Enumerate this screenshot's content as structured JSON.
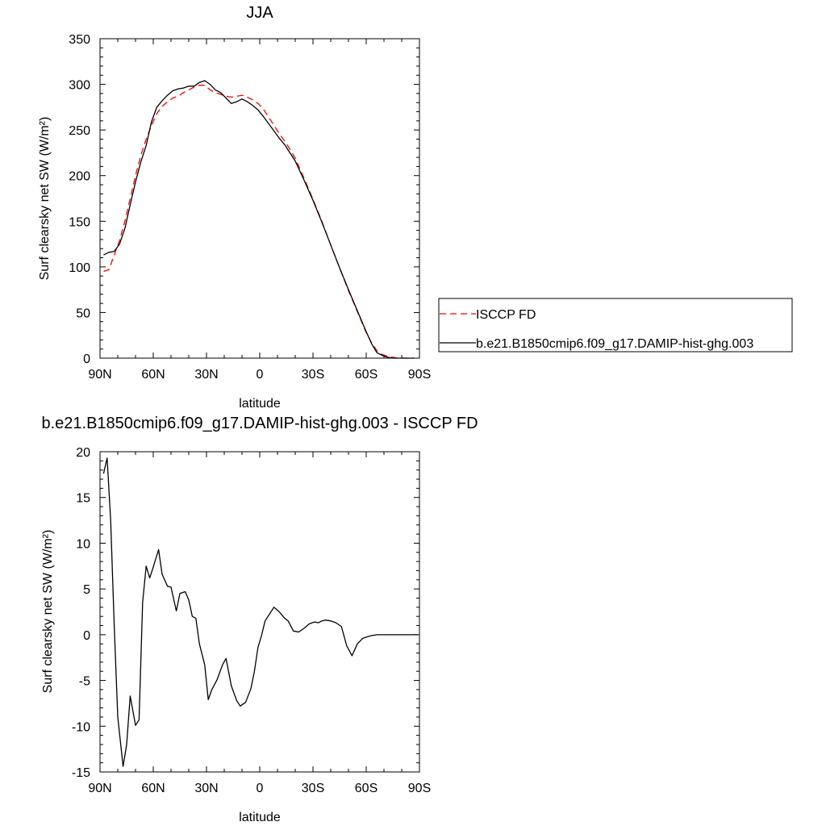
{
  "chart_data": [
    {
      "type": "line",
      "title": "JJA",
      "xlabel": "latitude",
      "ylabel": "Surf clearsky net SW (W/m²)",
      "xlim": [
        90,
        -90
      ],
      "ylim": [
        0,
        350
      ],
      "xticks": [
        90,
        60,
        30,
        0,
        -30,
        -60,
        -90
      ],
      "xtick_labels": [
        "90N",
        "60N",
        "30N",
        "0",
        "30S",
        "60S",
        "90S"
      ],
      "yticks": [
        0,
        50,
        100,
        150,
        200,
        250,
        300,
        350
      ],
      "ytick_labels": [
        "0",
        "50",
        "100",
        "150",
        "200",
        "250",
        "300",
        "350"
      ],
      "legend_position": "right",
      "series": [
        {
          "name": "ISCCP FD",
          "color": "#ff0000",
          "dash": true,
          "x": [
            88,
            85,
            82,
            79,
            76,
            73,
            70,
            67,
            64,
            61,
            58,
            55,
            52,
            49,
            46,
            43,
            40,
            37,
            34,
            31,
            28,
            25,
            22,
            19,
            16,
            13,
            10,
            7,
            4,
            1,
            -2,
            -5,
            -8,
            -11,
            -14,
            -17,
            -20,
            -25,
            -30,
            -35,
            -40,
            -45,
            -50,
            -55,
            -60,
            -63,
            -66,
            -69,
            -72,
            -75,
            -78,
            -81,
            -84,
            -87
          ],
          "y": [
            95,
            97,
            113,
            129,
            150,
            175,
            200,
            222,
            240,
            255,
            268,
            276,
            281,
            285,
            287,
            291,
            294,
            297,
            299,
            299,
            294,
            291,
            289,
            287,
            286,
            287,
            288,
            286,
            283,
            279,
            273,
            264,
            255,
            246,
            238,
            229,
            219,
            197,
            174,
            150,
            124,
            99,
            74,
            51,
            28,
            17,
            8,
            4,
            2,
            1,
            0,
            0,
            0,
            0
          ]
        },
        {
          "name": "b.e21.B1850cmip6.f09_g17.DAMIP-hist-ghg.003",
          "color": "#000000",
          "dash": false,
          "x": [
            88,
            85,
            82,
            79,
            76,
            73,
            70,
            67,
            64,
            61,
            58,
            55,
            52,
            49,
            46,
            43,
            40,
            37,
            34,
            31,
            28,
            25,
            22,
            19,
            16,
            13,
            10,
            7,
            4,
            1,
            -2,
            -5,
            -8,
            -11,
            -14,
            -17,
            -20,
            -25,
            -30,
            -35,
            -40,
            -45,
            -50,
            -55,
            -60,
            -63,
            -66,
            -69,
            -72,
            -75,
            -78,
            -81,
            -84,
            -87
          ],
          "y": [
            113,
            116,
            117,
            125,
            142,
            168,
            193,
            215,
            233,
            259,
            275,
            282,
            288,
            293,
            295,
            296,
            298,
            298,
            302,
            304,
            300,
            294,
            291,
            285,
            279,
            281,
            284,
            281,
            277,
            272,
            265,
            257,
            249,
            241,
            234,
            225,
            216,
            195,
            173,
            149,
            124,
            99,
            75,
            52,
            29,
            16,
            6,
            3,
            1,
            0,
            0,
            0,
            0,
            0
          ]
        }
      ]
    },
    {
      "type": "line",
      "title": "b.e21.B1850cmip6.f09_g17.DAMIP-hist-ghg.003 - ISCCP FD",
      "xlabel": "latitude",
      "ylabel": "Surf clearsky net SW (W/m²)",
      "xlim": [
        90,
        -90
      ],
      "ylim": [
        -15,
        20
      ],
      "xticks": [
        90,
        60,
        30,
        0,
        -30,
        -60,
        -90
      ],
      "xtick_labels": [
        "90N",
        "60N",
        "30N",
        "0",
        "30S",
        "60S",
        "90S"
      ],
      "yticks": [
        -15,
        -10,
        -5,
        0,
        5,
        10,
        15,
        20
      ],
      "ytick_labels": [
        "-15",
        "-10",
        "-5",
        "0",
        "5",
        "10",
        "15",
        "20"
      ],
      "series": [
        {
          "color": "#000000",
          "dash": false,
          "x": [
            88,
            86,
            84,
            82,
            80,
            77,
            75,
            73,
            70,
            68,
            66,
            64,
            62,
            60,
            57,
            55,
            52,
            50,
            47,
            45,
            42,
            40,
            38,
            36,
            34,
            31,
            29,
            27,
            24,
            21,
            19,
            16,
            13,
            11,
            8,
            5,
            3,
            1,
            -1,
            -3,
            -6,
            -8,
            -11,
            -14,
            -16,
            -19,
            -22,
            -25,
            -28,
            -31,
            -33,
            -35,
            -37,
            -40,
            -43,
            -46,
            -49,
            -52,
            -55,
            -58,
            -61,
            -63,
            -66,
            -68,
            -71,
            -74,
            -77,
            -80,
            -83,
            -86,
            -89
          ],
          "y": [
            17.6,
            19.3,
            12.5,
            1.0,
            -9.0,
            -14.4,
            -12.0,
            -6.7,
            -9.9,
            -9.3,
            3.5,
            7.5,
            6.2,
            7.4,
            9.3,
            6.6,
            5.3,
            5.2,
            2.6,
            4.5,
            4.7,
            3.8,
            2.0,
            1.8,
            -1.0,
            -3.3,
            -7.1,
            -6.0,
            -4.9,
            -3.3,
            -2.6,
            -5.6,
            -7.2,
            -7.8,
            -7.4,
            -5.9,
            -4.0,
            -1.4,
            -0.1,
            1.5,
            2.4,
            3.0,
            2.5,
            1.8,
            1.5,
            0.4,
            0.3,
            0.7,
            1.2,
            1.4,
            1.3,
            1.5,
            1.6,
            1.5,
            1.3,
            0.9,
            -1.2,
            -2.3,
            -1.0,
            -0.4,
            -0.2,
            -0.1,
            0.0,
            0.0,
            0.0,
            0.0,
            0.0,
            0.0,
            0.0,
            0.0,
            0.0
          ]
        }
      ]
    }
  ]
}
